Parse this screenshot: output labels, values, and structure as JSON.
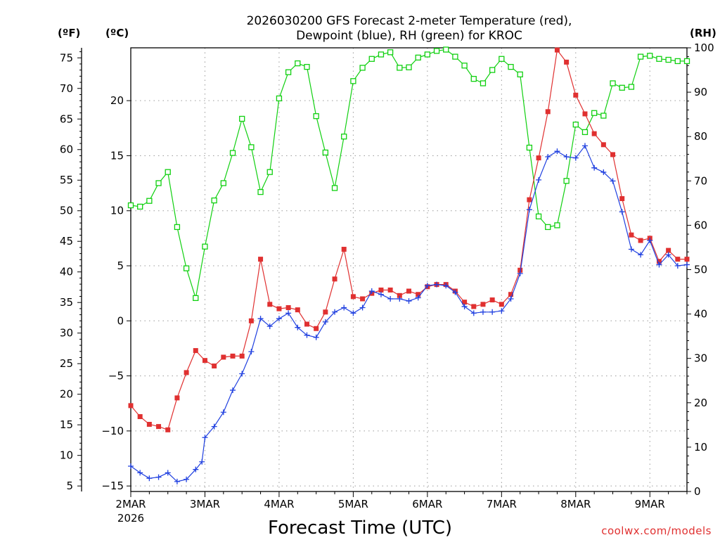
{
  "chart_data": {
    "type": "line",
    "title": "2026030200 GFS Forecast 2-meter Temperature (red), Dewpoint (blue), RH (green) for KROC",
    "title_line1": "2026030200 GFS Forecast 2-meter Temperature (red),",
    "title_line2": "Dewpoint (blue), RH (green) for KROC",
    "xlabel": "Forecast Time (UTC)",
    "credit": "coolwx.com/models",
    "x_unit": "days since 2026-03-02 00Z",
    "xlim": [
      0,
      7.5
    ],
    "x_ticks": [
      0,
      1,
      2,
      3,
      4,
      5,
      6,
      7
    ],
    "x_tick_labels": [
      "2MAR",
      "3MAR",
      "4MAR",
      "5MAR",
      "6MAR",
      "7MAR",
      "8MAR",
      "9MAR"
    ],
    "x_first_year": "2026",
    "axes": {
      "left_f": {
        "unit_label": "(ºF)",
        "ticks": [
          5,
          10,
          15,
          20,
          25,
          30,
          35,
          40,
          45,
          50,
          55,
          60,
          65,
          70,
          75
        ]
      },
      "left_c": {
        "unit_label": "(ºC)",
        "ylim": [
          -15.5,
          24.8
        ],
        "ticks": [
          -15,
          -10,
          -5,
          0,
          5,
          10,
          15,
          20
        ]
      },
      "right_rh": {
        "unit_label": "(RH)",
        "ylim": [
          0,
          100
        ],
        "ticks": [
          0,
          10,
          20,
          30,
          40,
          50,
          60,
          70,
          80,
          90,
          100
        ]
      }
    },
    "grid": true,
    "series": [
      {
        "name": "Temperature",
        "axis": "left_c",
        "color": "#e03030",
        "marker": "filled-square",
        "points": [
          [
            0,
            -7.7
          ],
          [
            0.125,
            -8.7
          ],
          [
            0.25,
            -9.4
          ],
          [
            0.375,
            -9.6
          ],
          [
            0.5,
            -9.9
          ],
          [
            0.625,
            -7.0
          ],
          [
            0.75,
            -4.7
          ],
          [
            0.875,
            -2.7
          ],
          [
            1.0,
            -3.6
          ],
          [
            1.125,
            -4.1
          ],
          [
            1.25,
            -3.3
          ],
          [
            1.375,
            -3.2
          ],
          [
            1.5,
            -3.2
          ],
          [
            1.625,
            0.0
          ],
          [
            1.75,
            5.6
          ],
          [
            1.875,
            1.5
          ],
          [
            2.0,
            1.1
          ],
          [
            2.125,
            1.2
          ],
          [
            2.25,
            1.0
          ],
          [
            2.375,
            -0.3
          ],
          [
            2.5,
            -0.7
          ],
          [
            2.625,
            0.8
          ],
          [
            2.75,
            3.8
          ],
          [
            2.875,
            6.5
          ],
          [
            3.0,
            2.2
          ],
          [
            3.125,
            2.0
          ],
          [
            3.25,
            2.5
          ],
          [
            3.375,
            2.8
          ],
          [
            3.5,
            2.8
          ],
          [
            3.625,
            2.3
          ],
          [
            3.75,
            2.7
          ],
          [
            3.875,
            2.4
          ],
          [
            4.0,
            3.1
          ],
          [
            4.125,
            3.3
          ],
          [
            4.25,
            3.3
          ],
          [
            4.375,
            2.7
          ],
          [
            4.5,
            1.7
          ],
          [
            4.625,
            1.3
          ],
          [
            4.75,
            1.5
          ],
          [
            4.875,
            1.9
          ],
          [
            5.0,
            1.5
          ],
          [
            5.125,
            2.4
          ],
          [
            5.25,
            4.6
          ],
          [
            5.375,
            11.0
          ],
          [
            5.5,
            14.8
          ],
          [
            5.625,
            19.0
          ],
          [
            5.75,
            24.6
          ],
          [
            5.875,
            23.5
          ],
          [
            6.0,
            20.5
          ],
          [
            6.125,
            18.8
          ],
          [
            6.25,
            17.0
          ],
          [
            6.375,
            16.0
          ],
          [
            6.5,
            15.1
          ],
          [
            6.625,
            11.1
          ],
          [
            6.75,
            7.8
          ],
          [
            6.875,
            7.3
          ],
          [
            7.0,
            7.5
          ],
          [
            7.125,
            5.4
          ],
          [
            7.25,
            6.4
          ],
          [
            7.375,
            5.6
          ],
          [
            7.5,
            5.6
          ]
        ]
      },
      {
        "name": "Dewpoint",
        "axis": "left_c",
        "color": "#2040e0",
        "marker": "plus",
        "points": [
          [
            0,
            -13.2
          ],
          [
            0.125,
            -13.8
          ],
          [
            0.25,
            -14.3
          ],
          [
            0.375,
            -14.2
          ],
          [
            0.5,
            -13.8
          ],
          [
            0.625,
            -14.6
          ],
          [
            0.75,
            -14.4
          ],
          [
            0.875,
            -13.5
          ],
          [
            0.96,
            -12.8
          ],
          [
            1.0,
            -10.6
          ],
          [
            1.125,
            -9.6
          ],
          [
            1.25,
            -8.3
          ],
          [
            1.375,
            -6.3
          ],
          [
            1.5,
            -4.8
          ],
          [
            1.625,
            -2.8
          ],
          [
            1.75,
            0.2
          ],
          [
            1.875,
            -0.5
          ],
          [
            2.0,
            0.2
          ],
          [
            2.125,
            0.7
          ],
          [
            2.25,
            -0.6
          ],
          [
            2.375,
            -1.3
          ],
          [
            2.5,
            -1.5
          ],
          [
            2.625,
            -0.1
          ],
          [
            2.75,
            0.8
          ],
          [
            2.875,
            1.2
          ],
          [
            3.0,
            0.7
          ],
          [
            3.125,
            1.2
          ],
          [
            3.25,
            2.7
          ],
          [
            3.375,
            2.4
          ],
          [
            3.5,
            2.0
          ],
          [
            3.625,
            2.0
          ],
          [
            3.75,
            1.8
          ],
          [
            3.875,
            2.1
          ],
          [
            4.0,
            3.2
          ],
          [
            4.125,
            3.3
          ],
          [
            4.25,
            3.2
          ],
          [
            4.375,
            2.6
          ],
          [
            4.5,
            1.3
          ],
          [
            4.625,
            0.7
          ],
          [
            4.75,
            0.8
          ],
          [
            4.875,
            0.8
          ],
          [
            5.0,
            0.9
          ],
          [
            5.125,
            2.0
          ],
          [
            5.25,
            4.3
          ],
          [
            5.375,
            10.1
          ],
          [
            5.5,
            12.8
          ],
          [
            5.625,
            14.9
          ],
          [
            5.75,
            15.4
          ],
          [
            5.875,
            14.9
          ],
          [
            6.0,
            14.8
          ],
          [
            6.125,
            15.9
          ],
          [
            6.25,
            13.9
          ],
          [
            6.375,
            13.5
          ],
          [
            6.5,
            12.7
          ],
          [
            6.625,
            9.9
          ],
          [
            6.75,
            6.5
          ],
          [
            6.875,
            6.0
          ],
          [
            7.0,
            7.3
          ],
          [
            7.125,
            5.1
          ],
          [
            7.25,
            6.0
          ],
          [
            7.375,
            5.0
          ],
          [
            7.5,
            5.1
          ]
        ]
      },
      {
        "name": "RH",
        "axis": "right_rh",
        "color": "#10d010",
        "marker": "open-square",
        "points": [
          [
            0,
            64.5
          ],
          [
            0.125,
            64.2
          ],
          [
            0.25,
            65.5
          ],
          [
            0.375,
            69.5
          ],
          [
            0.5,
            72.0
          ],
          [
            0.625,
            59.6
          ],
          [
            0.75,
            50.3
          ],
          [
            0.875,
            43.6
          ],
          [
            1.0,
            55.2
          ],
          [
            1.125,
            65.6
          ],
          [
            1.25,
            69.5
          ],
          [
            1.375,
            76.3
          ],
          [
            1.5,
            84.0
          ],
          [
            1.625,
            77.6
          ],
          [
            1.75,
            67.5
          ],
          [
            1.875,
            72.0
          ],
          [
            2.0,
            88.6
          ],
          [
            2.125,
            94.5
          ],
          [
            2.25,
            96.5
          ],
          [
            2.375,
            95.7
          ],
          [
            2.5,
            84.6
          ],
          [
            2.625,
            76.4
          ],
          [
            2.75,
            68.4
          ],
          [
            2.875,
            80.0
          ],
          [
            3.0,
            92.5
          ],
          [
            3.125,
            95.5
          ],
          [
            3.25,
            97.5
          ],
          [
            3.375,
            98.5
          ],
          [
            3.5,
            99.0
          ],
          [
            3.625,
            95.5
          ],
          [
            3.75,
            95.6
          ],
          [
            3.875,
            97.8
          ],
          [
            4.0,
            98.5
          ],
          [
            4.125,
            99.3
          ],
          [
            4.25,
            99.6
          ],
          [
            4.375,
            98.0
          ],
          [
            4.5,
            96.0
          ],
          [
            4.625,
            93.0
          ],
          [
            4.75,
            92.0
          ],
          [
            4.875,
            95.0
          ],
          [
            5.0,
            97.5
          ],
          [
            5.125,
            95.7
          ],
          [
            5.25,
            94.0
          ],
          [
            5.375,
            77.5
          ],
          [
            5.5,
            62.0
          ],
          [
            5.625,
            59.6
          ],
          [
            5.75,
            60.0
          ],
          [
            5.875,
            70.0
          ],
          [
            6.0,
            82.7
          ],
          [
            6.125,
            81.0
          ],
          [
            6.25,
            85.3
          ],
          [
            6.375,
            84.7
          ],
          [
            6.5,
            92.0
          ],
          [
            6.625,
            91.0
          ],
          [
            6.75,
            91.2
          ],
          [
            6.875,
            98.0
          ],
          [
            7.0,
            98.2
          ],
          [
            7.125,
            97.5
          ],
          [
            7.25,
            97.3
          ],
          [
            7.375,
            97.0
          ],
          [
            7.5,
            97.0
          ]
        ]
      }
    ]
  }
}
